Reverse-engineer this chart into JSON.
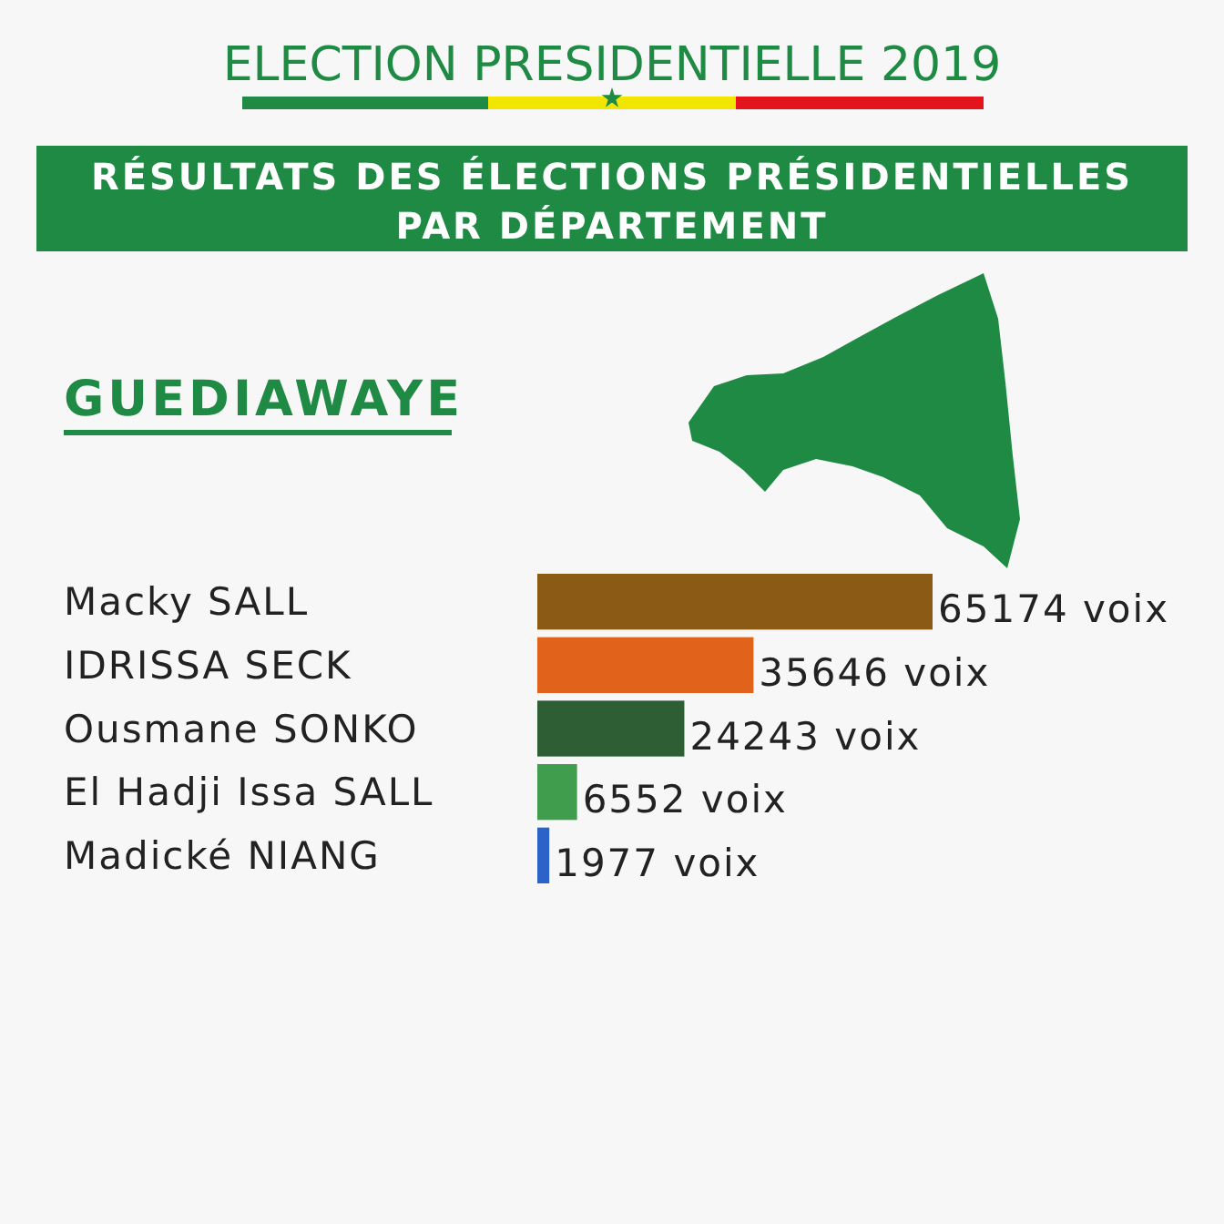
{
  "chart_data": {
    "type": "bar",
    "orientation": "horizontal",
    "title": "ELECTION PRESIDENTIELLE 2019",
    "subtitle": "RÉSULTATS DES ÉLECTIONS PRÉSIDENTIELLES PAR DÉPARTEMENT",
    "annotations": [
      "GUEDIAWAYE"
    ],
    "categories": [
      "Macky SALL",
      "IDRISSA SECK",
      "Ousmane SONKO",
      "El Hadji Issa SALL",
      "Madické NIANG"
    ],
    "values": [
      65174,
      35646,
      24243,
      6552,
      1977
    ],
    "colors": [
      "#8b5a14",
      "#e0621b",
      "#2e5e34",
      "#3f9d4d",
      "#2b63c9"
    ],
    "value_labels": [
      "65174 voix",
      "35646 voix",
      "24243 voix",
      "6552 voix",
      "1977 voix"
    ],
    "tick_labels": "y"
  }
}
